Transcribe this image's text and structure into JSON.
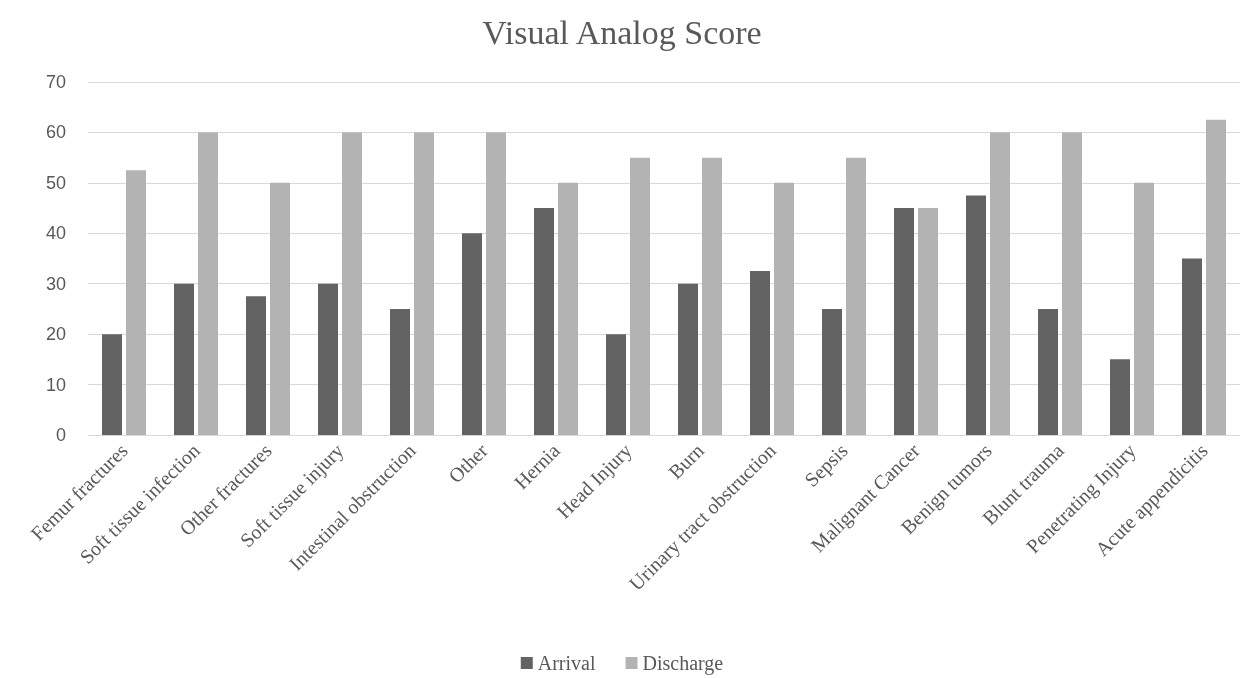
{
  "chart_data": {
    "type": "bar",
    "title": "Visual Analog Score",
    "categories": [
      "Femur fractures",
      "Soft tissue infection",
      "Other fractures",
      "Soft tissue injury",
      "Intestinal obstruction",
      "Other",
      "Hernia",
      "Head Injury",
      "Burn",
      "Urinary tract obstruction",
      "Sepsis",
      "Malignant Cancer",
      "Benign tumors",
      "Blunt trauma",
      "Penetrating Injury",
      "Acute appendicitis"
    ],
    "series": [
      {
        "name": "Arrival",
        "color": "#636363",
        "values": [
          20,
          30,
          27.5,
          30,
          25,
          40,
          45,
          20,
          30,
          32.5,
          25,
          45,
          47.5,
          25,
          15,
          35
        ]
      },
      {
        "name": "Discharge",
        "color": "#b3b3b3",
        "values": [
          52.5,
          60,
          50,
          60,
          60,
          60,
          50,
          55,
          55,
          50,
          55,
          45,
          60,
          60,
          50,
          62.5
        ]
      }
    ],
    "ylim": [
      0,
      70
    ],
    "yticks": [
      0,
      10,
      20,
      30,
      40,
      50,
      60,
      70
    ],
    "grid": "y",
    "legend": "bottom"
  }
}
